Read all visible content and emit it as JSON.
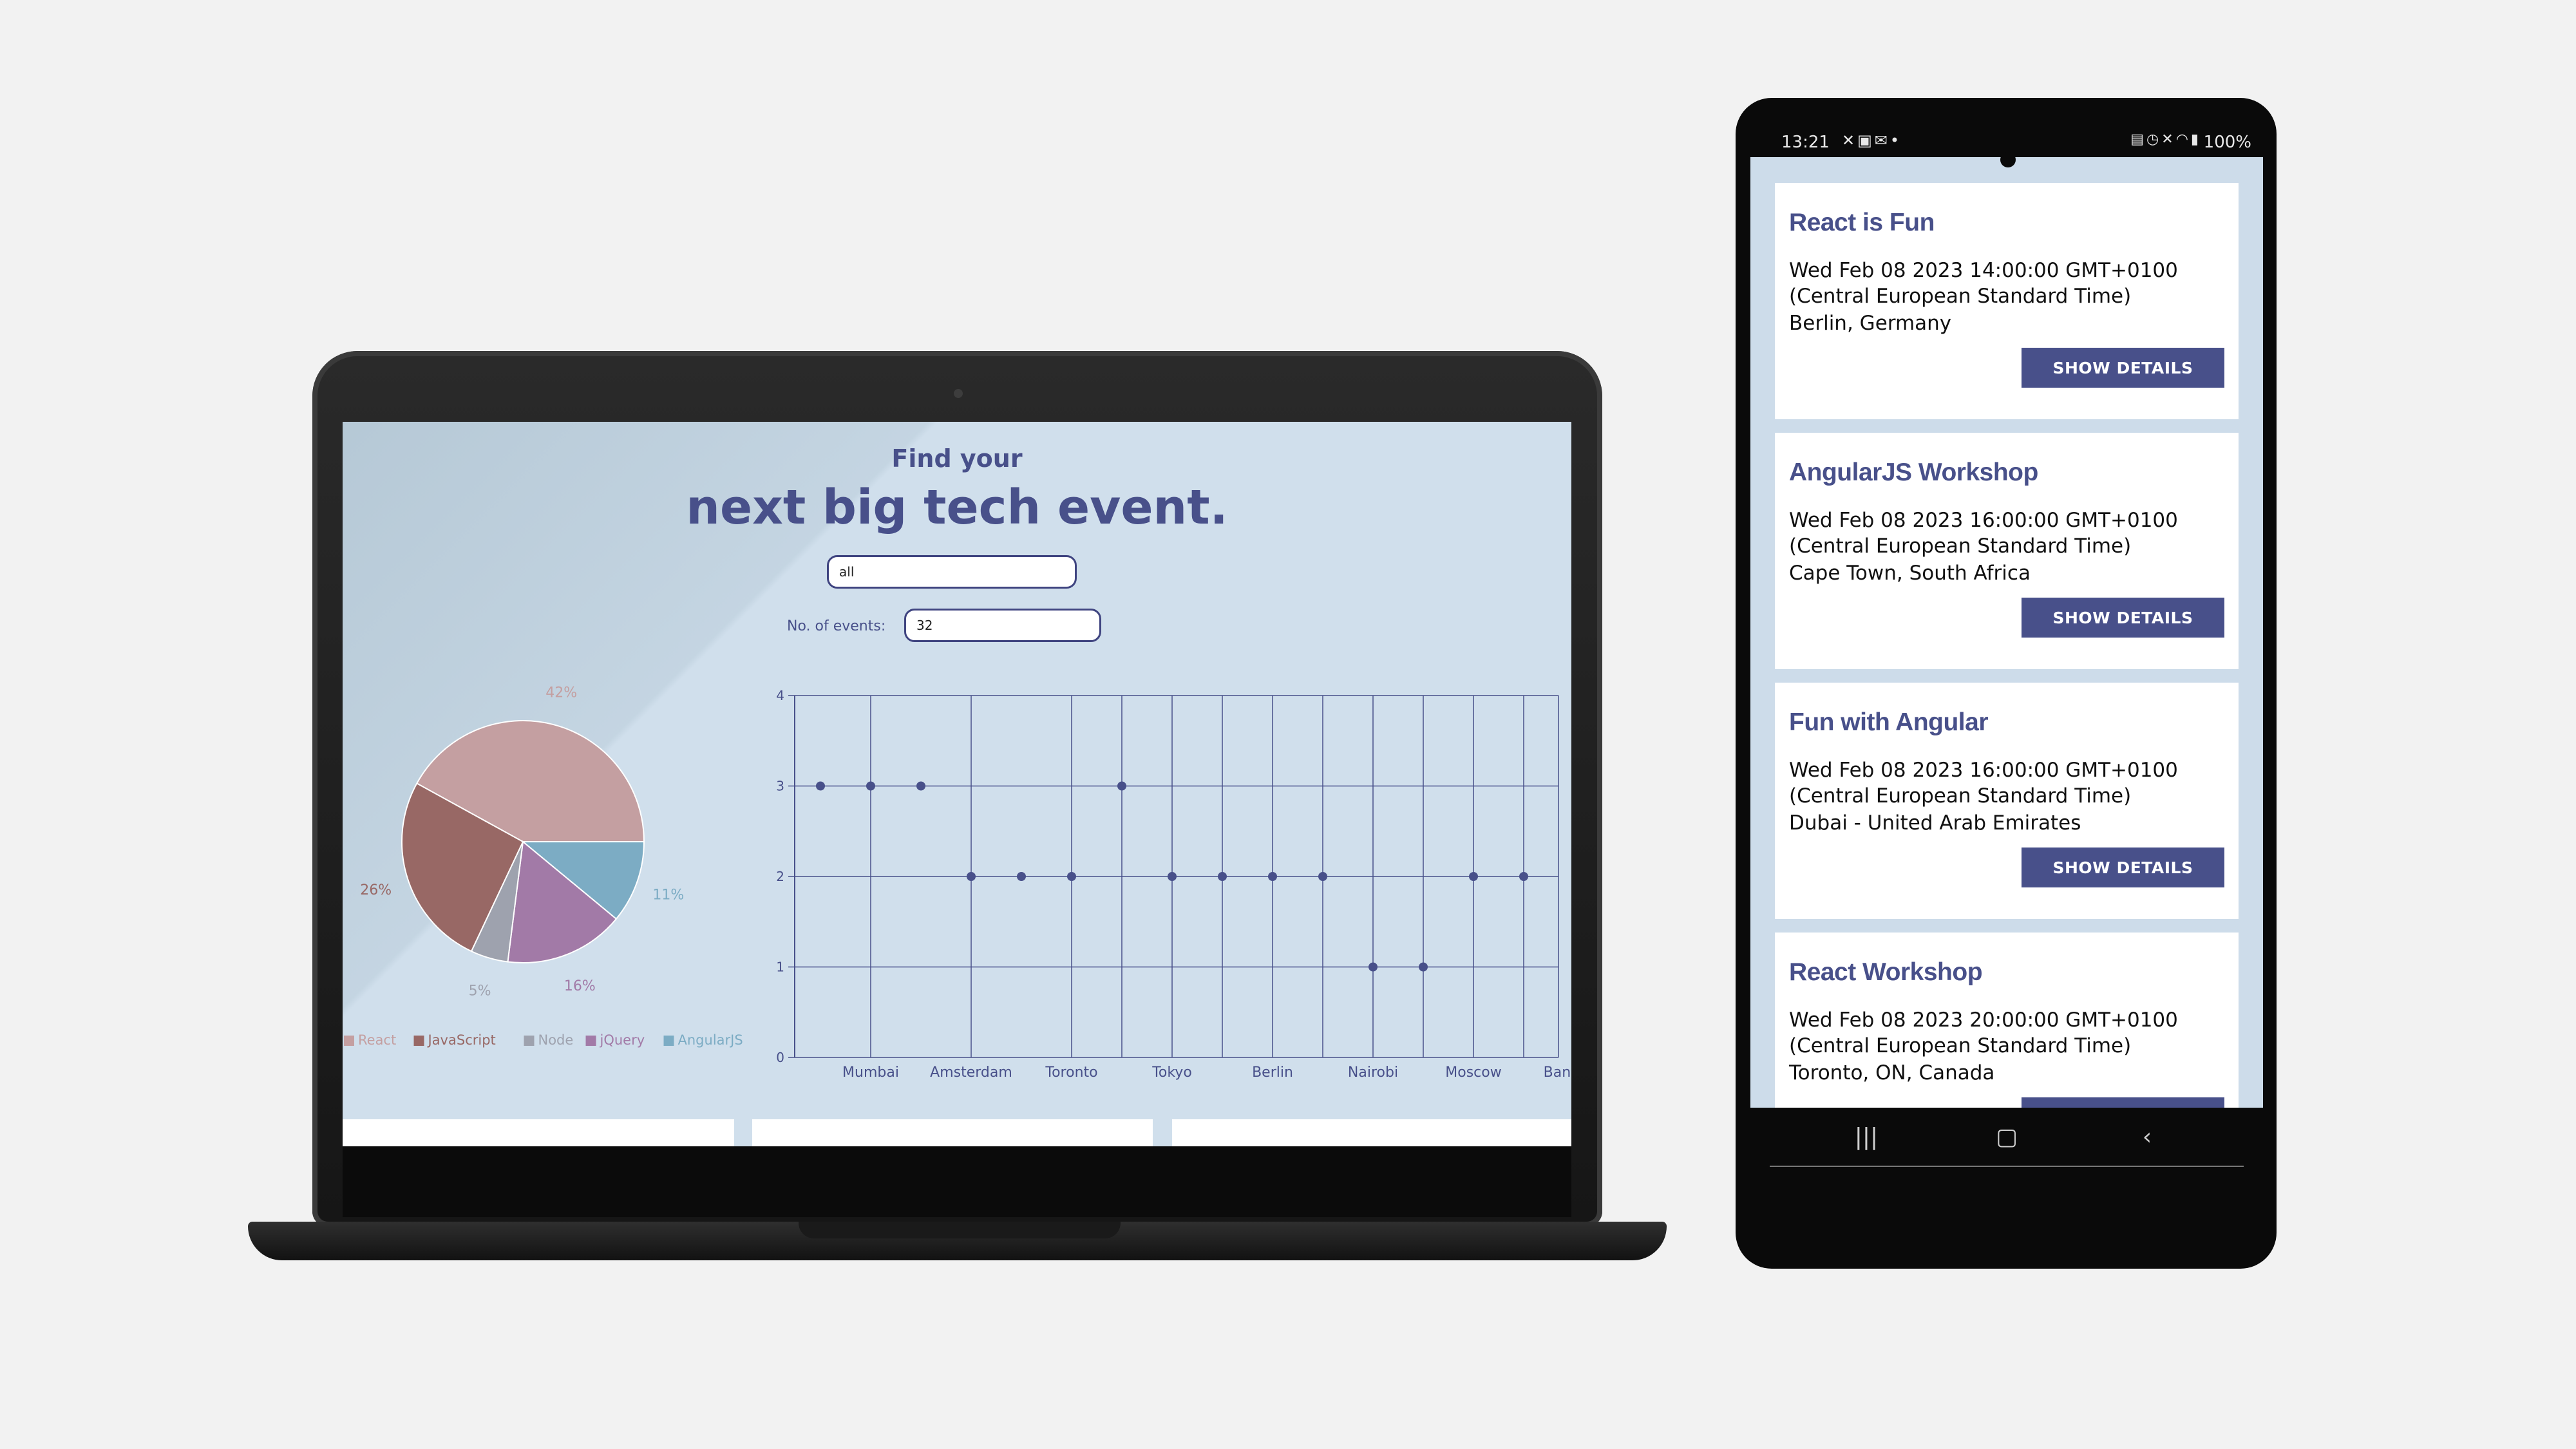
{
  "laptop_app": {
    "hero_subtitle": "Find your",
    "hero_title": "next big tech event.",
    "city_search": {
      "value": "all"
    },
    "events_number": {
      "label": "No. of events:",
      "value": "32"
    },
    "colors": {
      "primary": "#48508a",
      "background": "#d0dfec"
    }
  },
  "chart_data": [
    {
      "type": "pie",
      "title": "",
      "slices": [
        {
          "label": "React",
          "value": 42,
          "display": "42%",
          "color": "#c49fa1"
        },
        {
          "label": "JavaScript",
          "value": 26,
          "display": "26%",
          "color": "#986865"
        },
        {
          "label": "Node",
          "value": 5,
          "display": "5%",
          "color": "#9ea2ae"
        },
        {
          "label": "jQuery",
          "value": 16,
          "display": "16%",
          "color": "#a27aa7"
        },
        {
          "label": "AngularJS",
          "value": 11,
          "display": "11%",
          "color": "#7cacc4"
        }
      ],
      "legend": [
        "React",
        "JavaScript",
        "Node",
        "jQuery",
        "AngularJS"
      ],
      "legend_position": "bottom"
    },
    {
      "type": "scatter",
      "title": "",
      "xlabel": "",
      "ylabel": "",
      "categories": [
        "Mumbai",
        "Amsterdam",
        "Toronto",
        "Tokyo",
        "Berlin",
        "Nairobi",
        "Moscow",
        "Bangkok"
      ],
      "points": [
        3,
        3,
        3,
        2,
        2,
        2,
        3,
        2,
        2,
        2,
        2,
        1,
        1,
        2,
        2
      ],
      "y_ticks": [
        "0",
        "1",
        "2",
        "3",
        "4"
      ],
      "ylim": [
        0,
        4
      ],
      "grid": true
    }
  ],
  "phone_app": {
    "status_bar": {
      "time": "13:21",
      "left_icons": [
        "x-icon",
        "image-icon",
        "mail-icon",
        "dot-icon"
      ],
      "right_icons": [
        "lock-icon",
        "alarm-icon",
        "mute-icon",
        "wifi-icon",
        "signal-icon"
      ],
      "battery": "100%"
    },
    "details_button_label": "SHOW DETAILS",
    "events": [
      {
        "title": "React is Fun",
        "date": "Wed Feb 08 2023 14:00:00 GMT+0100 (Central European Standard Time)",
        "location": "Berlin, Germany"
      },
      {
        "title": "AngularJS Workshop",
        "date": "Wed Feb 08 2023 16:00:00 GMT+0100 (Central European Standard Time)",
        "location": "Cape Town, South Africa"
      },
      {
        "title": "Fun with Angular",
        "date": "Wed Feb 08 2023 16:00:00 GMT+0100 (Central European Standard Time)",
        "location": "Dubai - United Arab Emirates"
      },
      {
        "title": "React Workshop",
        "date": "Wed Feb 08 2023 20:00:00 GMT+0100 (Central European Standard Time)",
        "location": "Toronto, ON, Canada"
      }
    ]
  }
}
